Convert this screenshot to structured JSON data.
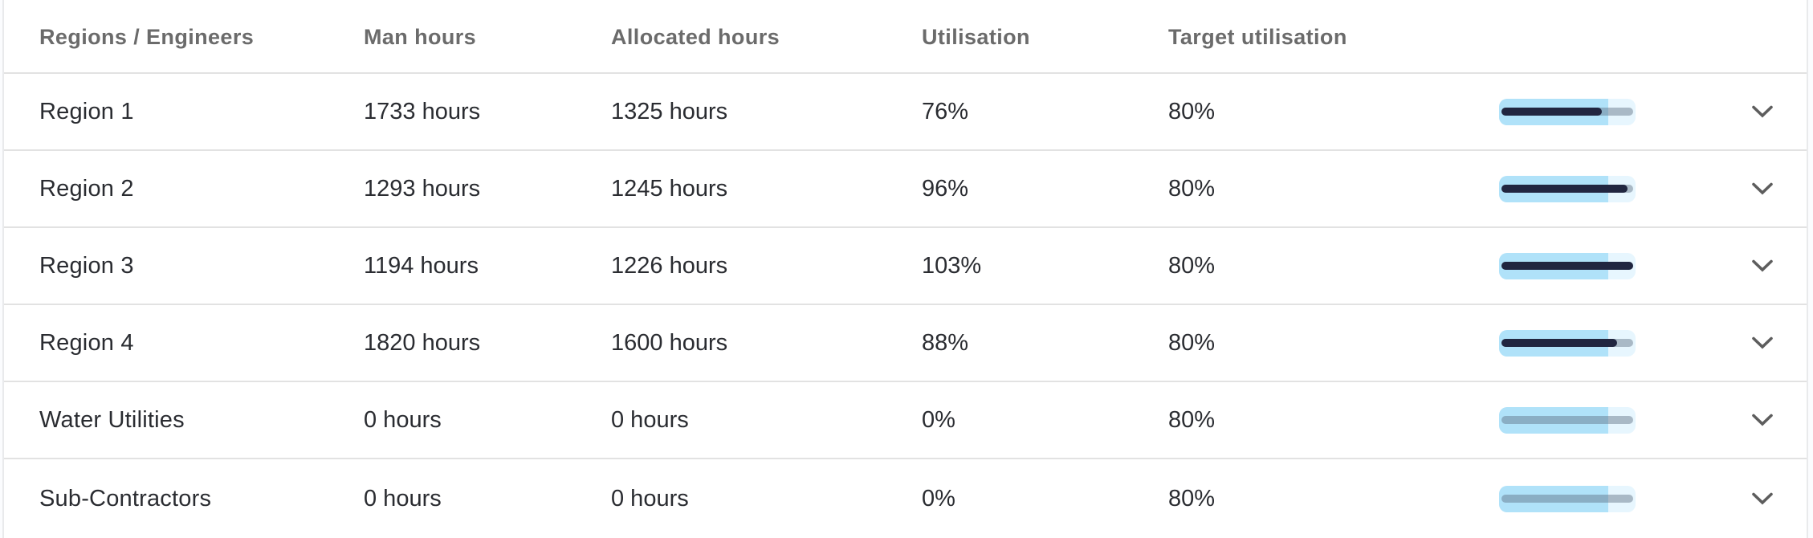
{
  "table": {
    "columns": [
      {
        "key": "name",
        "label": "Regions / Engineers"
      },
      {
        "key": "man_hours",
        "label": "Man hours"
      },
      {
        "key": "allocated_hours",
        "label": "Allocated hours"
      },
      {
        "key": "utilisation",
        "label": "Utilisation"
      },
      {
        "key": "target_utilisation",
        "label": "Target utilisation"
      }
    ],
    "rows": [
      {
        "name": "Region 1",
        "man_hours": "1733 hours",
        "allocated_hours": "1325 hours",
        "utilisation": "76%",
        "target_utilisation": "80%",
        "utilisation_pct": 76,
        "target_pct": 80
      },
      {
        "name": "Region 2",
        "man_hours": "1293 hours",
        "allocated_hours": "1245 hours",
        "utilisation": "96%",
        "target_utilisation": "80%",
        "utilisation_pct": 96,
        "target_pct": 80
      },
      {
        "name": "Region 3",
        "man_hours": "1194 hours",
        "allocated_hours": "1226 hours",
        "utilisation": "103%",
        "target_utilisation": "80%",
        "utilisation_pct": 103,
        "target_pct": 80
      },
      {
        "name": "Region 4",
        "man_hours": "1820 hours",
        "allocated_hours": "1600 hours",
        "utilisation": "88%",
        "target_utilisation": "80%",
        "utilisation_pct": 88,
        "target_pct": 80
      },
      {
        "name": "Water Utilities",
        "man_hours": "0 hours",
        "allocated_hours": "0 hours",
        "utilisation": "0%",
        "target_utilisation": "80%",
        "utilisation_pct": 0,
        "target_pct": 80
      },
      {
        "name": "Sub-Contractors",
        "man_hours": "0 hours",
        "allocated_hours": "0 hours",
        "utilisation": "0%",
        "target_utilisation": "80%",
        "utilisation_pct": 0,
        "target_pct": 80
      }
    ]
  },
  "icons": {
    "row_expand": "chevron-down-icon"
  },
  "colors": {
    "header_text": "#6b6b6b",
    "body_text": "#2a2c31",
    "separator": "#e2e2e2",
    "bar_target_fill": "#b0e2f9",
    "bar_remainder_fill": "#e7f6fe",
    "bar_utilisation_fill": "#212640",
    "bar_track": "#8795a8",
    "chevron": "#5d5d5d"
  }
}
